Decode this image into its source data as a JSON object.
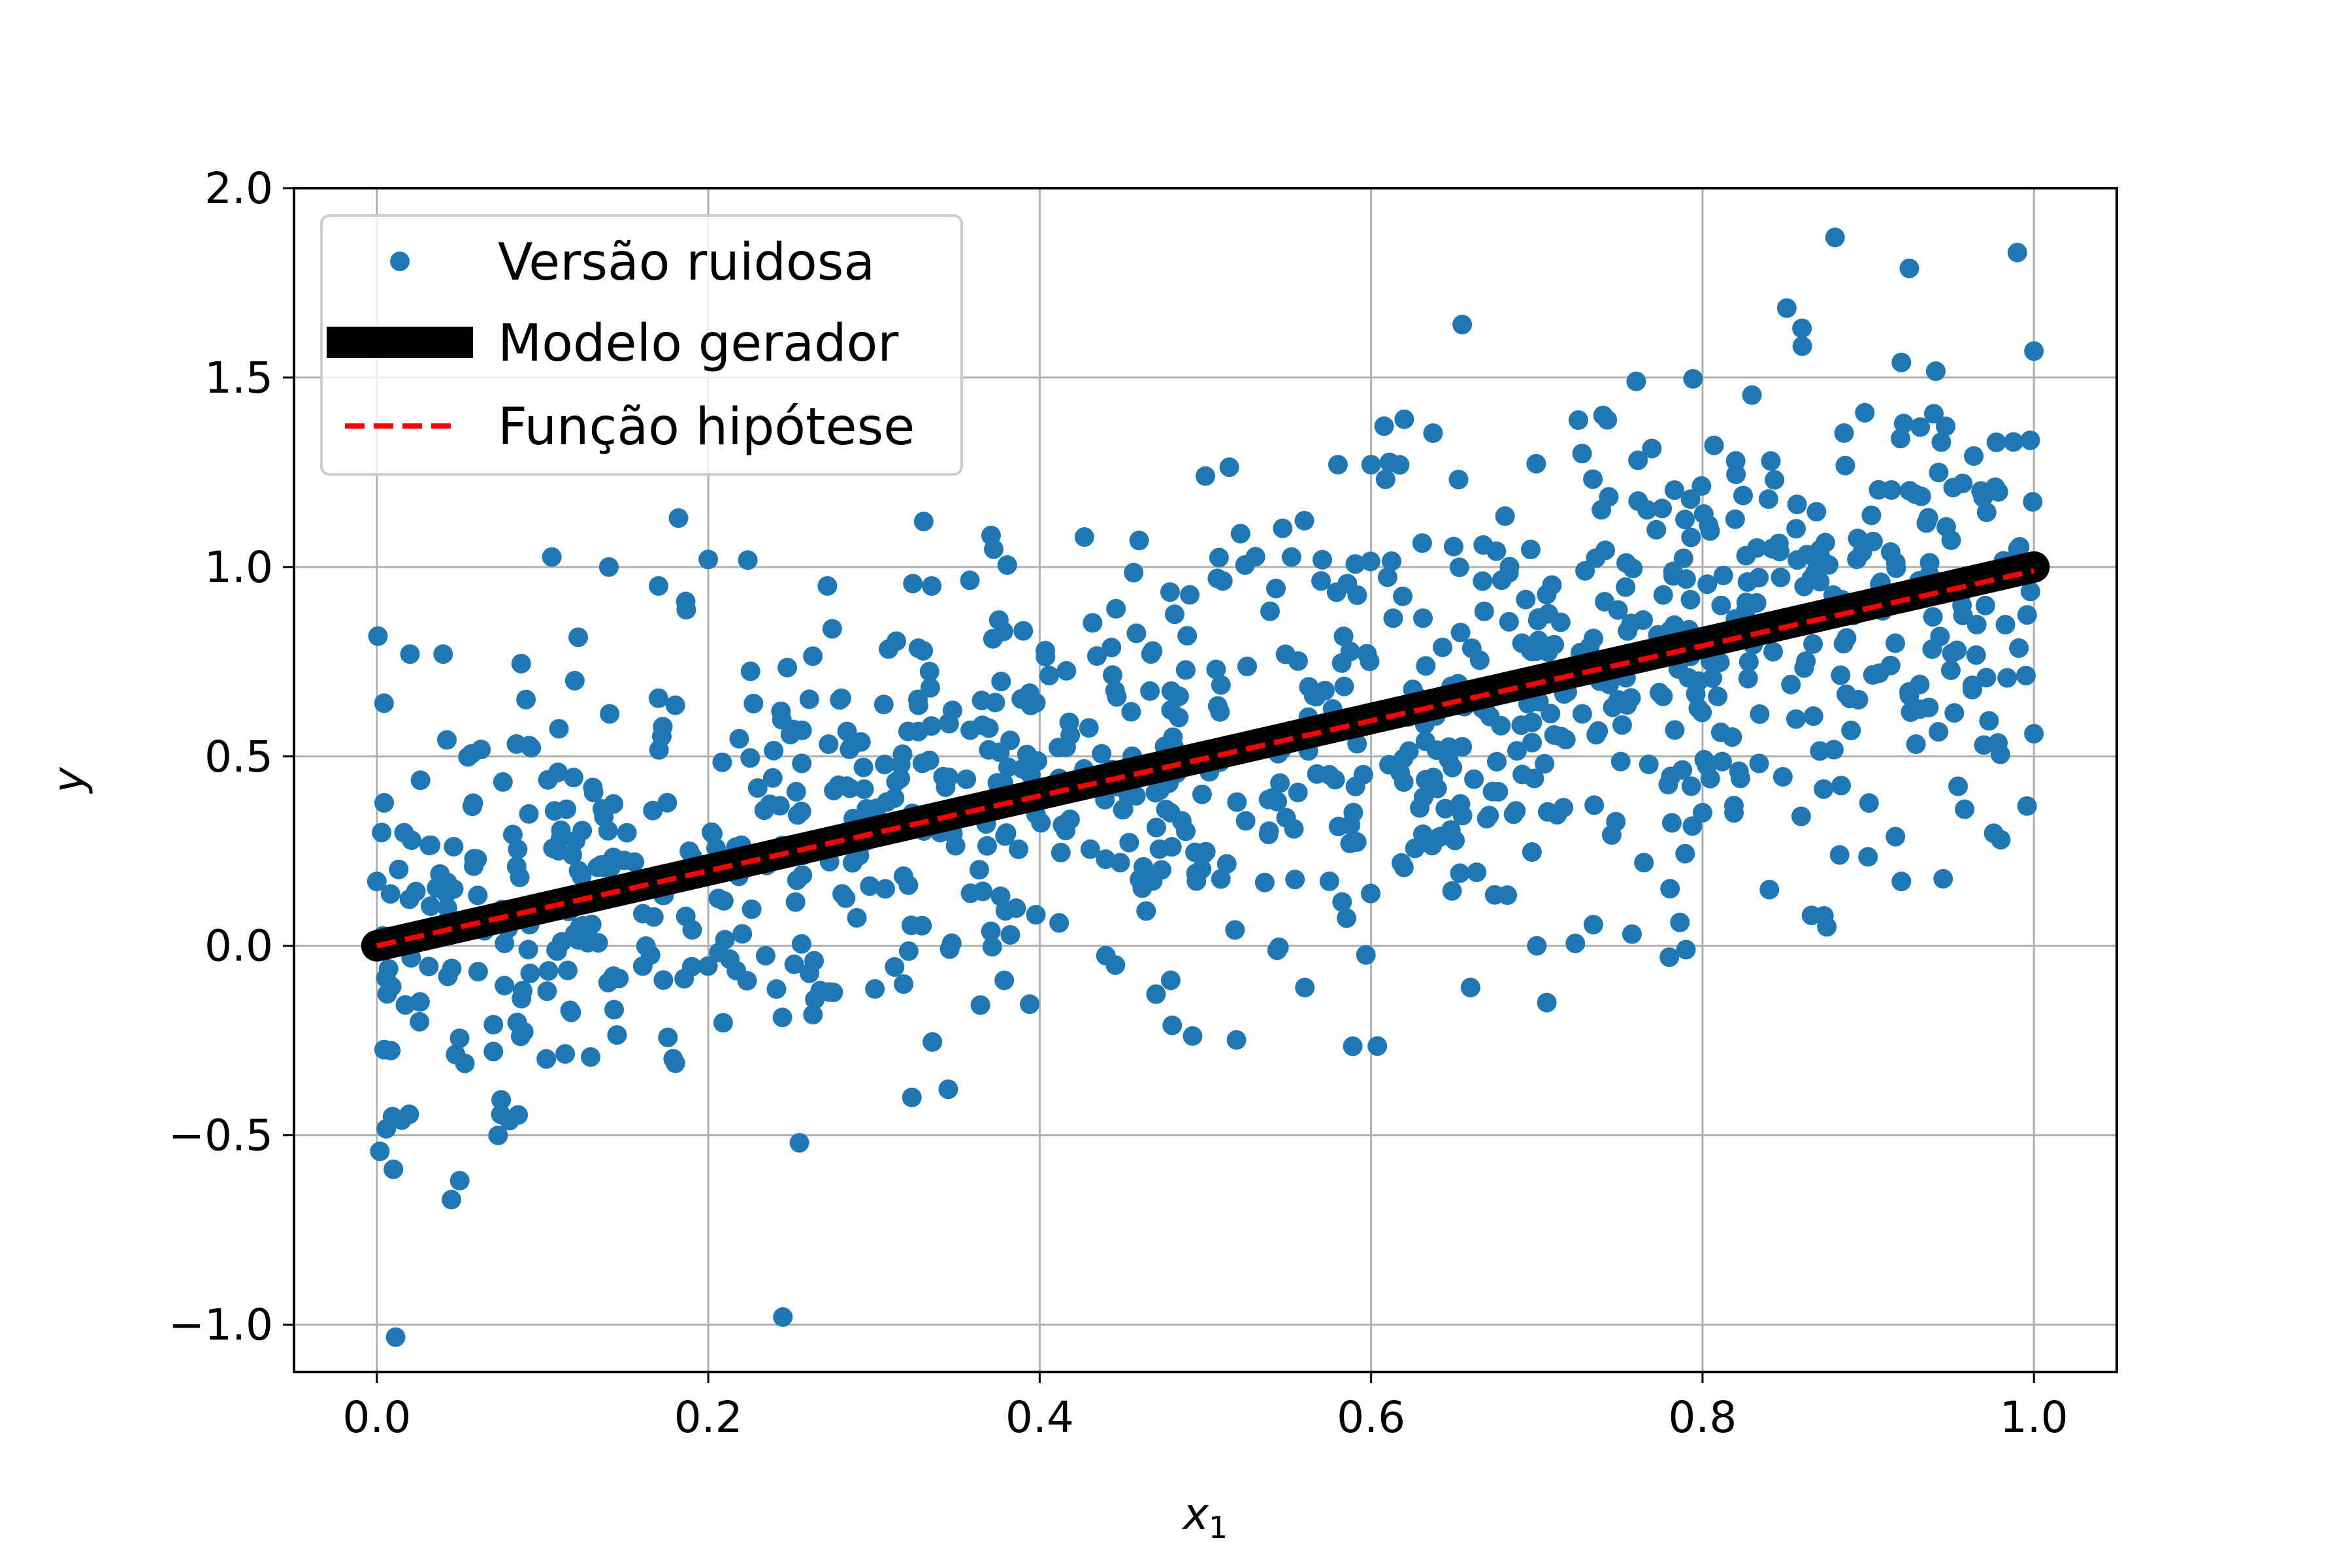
{
  "chart_data": {
    "type": "scatter",
    "xlim": [
      -0.05,
      1.05
    ],
    "ylim": [
      -1.125,
      2.0
    ],
    "x_ticks": [
      "0.0",
      "0.2",
      "0.4",
      "0.6",
      "0.8",
      "1.0"
    ],
    "y_ticks": [
      "−1.0",
      "−0.5",
      "0.0",
      "0.5",
      "1.0",
      "1.5",
      "2.0"
    ],
    "xlabel": "x",
    "xlabel_sub": "1",
    "ylabel": "y",
    "grid": true,
    "legend_position": "upper-left",
    "series": [
      {
        "name": "Versão ruidosa",
        "kind": "scatter",
        "color": "#1f77b4",
        "n_points": 1000,
        "approx_slope": 1.0,
        "approx_intercept": 0.0,
        "approx_noise_sd": 0.3,
        "sample_points": [
          [
            0.0,
            0.17
          ],
          [
            0.01,
            -0.59
          ],
          [
            0.015,
            -0.46
          ],
          [
            0.02,
            0.77
          ],
          [
            0.04,
            0.77
          ],
          [
            0.045,
            -0.67
          ],
          [
            0.05,
            -0.62
          ],
          [
            0.09,
            0.65
          ],
          [
            0.14,
            1.0
          ],
          [
            0.17,
            0.95
          ],
          [
            0.2,
            1.02
          ],
          [
            0.245,
            -0.98
          ],
          [
            0.255,
            -0.52
          ],
          [
            0.33,
            1.12
          ],
          [
            0.46,
            1.07
          ],
          [
            0.48,
            -0.21
          ],
          [
            0.5,
            1.24
          ],
          [
            0.56,
            -0.11
          ],
          [
            0.58,
            1.27
          ],
          [
            0.6,
            1.27
          ],
          [
            0.62,
            1.39
          ],
          [
            0.655,
            1.64
          ],
          [
            0.66,
            -0.11
          ],
          [
            0.7,
            0.0
          ],
          [
            0.74,
            1.4
          ],
          [
            0.76,
            1.49
          ],
          [
            0.78,
            -0.03
          ],
          [
            0.79,
            -0.01
          ],
          [
            0.82,
            1.28
          ],
          [
            0.86,
            1.63
          ],
          [
            0.875,
            0.05
          ],
          [
            0.88,
            1.87
          ],
          [
            0.92,
            0.17
          ],
          [
            0.92,
            1.54
          ],
          [
            0.98,
            0.28
          ],
          [
            0.99,
            1.83
          ],
          [
            1.0,
            1.57
          ],
          [
            1.0,
            0.56
          ]
        ]
      },
      {
        "name": "Modelo gerador",
        "kind": "line",
        "color": "#000000",
        "x": [
          0.0,
          1.0
        ],
        "y": [
          0.0,
          1.0
        ]
      },
      {
        "name": "Função hipótese",
        "kind": "dashed-line",
        "color": "#ff0000",
        "x": [
          0.0,
          1.0
        ],
        "y": [
          0.0,
          0.99
        ]
      }
    ]
  }
}
